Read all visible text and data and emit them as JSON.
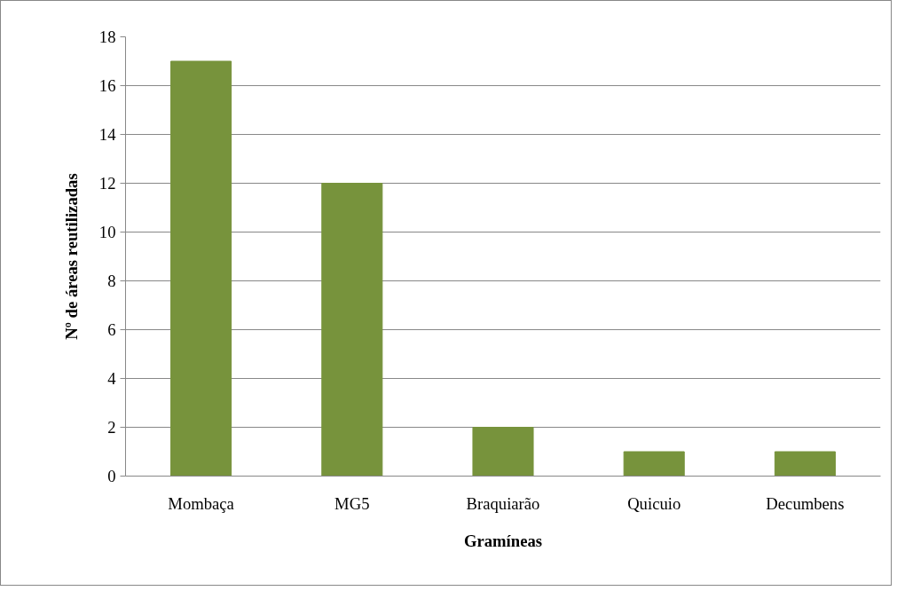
{
  "chart_data": {
    "type": "bar",
    "xlabel": "Gramíneas",
    "ylabel": "Nº de áreas reutilizadas",
    "categories": [
      "Mombaça",
      "MG5",
      "Braquiarão",
      "Quicuio",
      "Decumbens"
    ],
    "values": [
      17,
      12,
      2,
      1,
      1
    ],
    "color": "#77933c",
    "ylim": [
      0,
      18
    ],
    "yticks": [
      0,
      2,
      4,
      6,
      8,
      10,
      12,
      14,
      16,
      18
    ],
    "grid": "y"
  }
}
